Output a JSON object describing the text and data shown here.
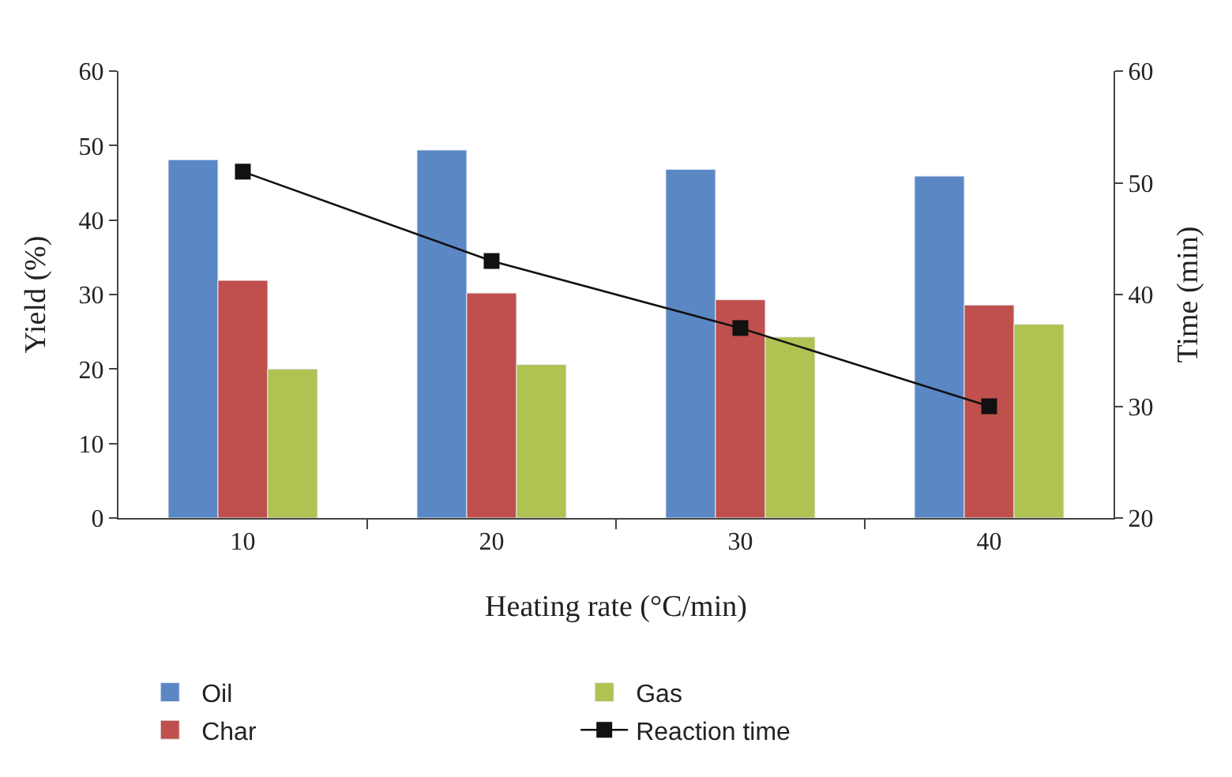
{
  "chart_data": {
    "type": "bar",
    "xlabel": "Heating rate (°C/min)",
    "ylabel": "Yield (%)",
    "y2label": "Time (min)",
    "categories": [
      "10",
      "20",
      "30",
      "40"
    ],
    "series": [
      {
        "name": "Oil",
        "color": "#5b87c5",
        "values": [
          48.1,
          49.4,
          46.8,
          45.9
        ]
      },
      {
        "name": "Char",
        "color": "#c0504d",
        "values": [
          31.9,
          30.2,
          29.3,
          28.6
        ]
      },
      {
        "name": "Gas",
        "color": "#afc252",
        "values": [
          20.0,
          20.6,
          24.3,
          26.0
        ]
      },
      {
        "name": "Reaction time",
        "color": "#111111",
        "type": "line",
        "axis": "y2",
        "marker": "square",
        "values": [
          51,
          43,
          37,
          30
        ]
      }
    ],
    "ylim": [
      0,
      60
    ],
    "yticks": [
      0,
      10,
      20,
      30,
      40,
      50,
      60
    ],
    "y2lim": [
      20,
      60
    ],
    "y2ticks": [
      20,
      30,
      40,
      50,
      60
    ],
    "legend": "bottom"
  }
}
